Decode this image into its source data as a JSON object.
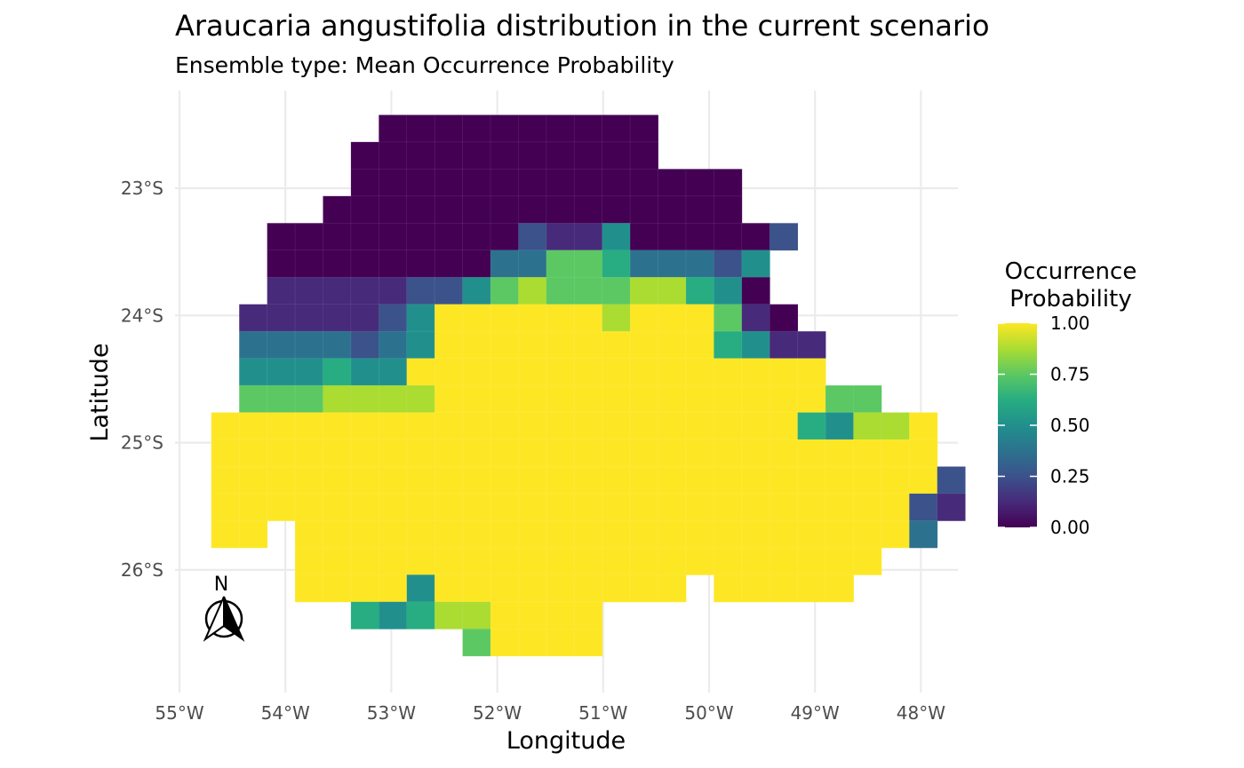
{
  "chart_data": {
    "type": "heatmap",
    "title": "Araucaria angustifolia distribution in the current scenario",
    "subtitle": "Ensemble type: Mean Occurrence Probability",
    "xlabel": "Longitude",
    "ylabel": "Latitude",
    "xlim": [
      -55,
      -47.5
    ],
    "ylim": [
      -26.95,
      -22.35
    ],
    "x_ticks": [
      {
        "value": -55,
        "label": "55°W"
      },
      {
        "value": -54,
        "label": "54°W"
      },
      {
        "value": -53,
        "label": "53°W"
      },
      {
        "value": -52,
        "label": "52°W"
      },
      {
        "value": -51,
        "label": "51°W"
      },
      {
        "value": -50,
        "label": "50°W"
      },
      {
        "value": -49,
        "label": "49°W"
      },
      {
        "value": -48,
        "label": "48°W"
      }
    ],
    "y_ticks": [
      {
        "value": -23,
        "label": "23°S"
      },
      {
        "value": -24,
        "label": "24°S"
      },
      {
        "value": -25,
        "label": "25°S"
      },
      {
        "value": -26,
        "label": "26°S"
      }
    ],
    "grid": true,
    "cell_size_deg": [
      0.2636,
      0.2126
    ],
    "grid_origin": {
      "lon_first_col_center": -54.568,
      "lat_first_row_center": -22.53
    },
    "rows": [
      "      ..........       ",
      "     ...........       ",
      "     ..............    ",
      "    ...............    ",
      "  .........2114.....2  ",
      "  ........3366533324   ",
      "  11111224676667754.   ",
      " 1111124888888798861.  ",
      " 333323489999999885411 ",
      " 444544899999999999999 ",
      " 66677779999999999999966",
      "99988999999999999999954779",
      "99999999999999999999999999",
      "999999999999999999999999982",
      "999999999999999999999999921",
      "99 99999999999999999999993 ",
      "   999999999999999999999   ",
      "   99884999999999 99999    ",
      "     545779999           ",
      "         69999            "
    ],
    "colorbar": {
      "title": "Occurrence Probability",
      "range": [
        0,
        1
      ],
      "ticks": [
        "1.00",
        "0.75",
        "0.50",
        "0.25",
        "0.00"
      ]
    },
    "north_arrow_label": "N"
  },
  "page": {
    "title": "Araucaria angustifolia distribution in the current scenario",
    "subtitle": "Ensemble type: Mean Occurrence Probability",
    "xlabel": "Longitude",
    "ylabel": "Latitude",
    "legend_title_line1": "Occurrence",
    "legend_title_line2": "Probability",
    "north_label": "N"
  },
  "palette": {
    "viridis": [
      "#440154",
      "#472a7a",
      "#3b528b",
      "#2c728e",
      "#21908d",
      "#27ad81",
      "#5cc863",
      "#aadc32",
      "#fde725"
    ],
    "grid_color": "#ebebeb"
  }
}
